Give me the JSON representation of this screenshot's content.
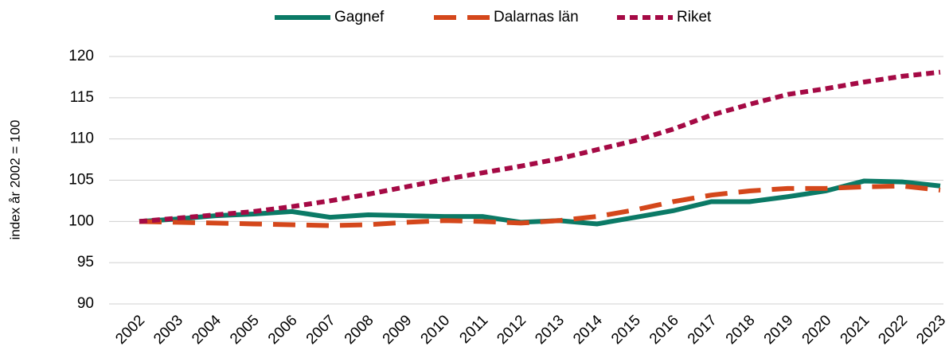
{
  "chart_data": {
    "type": "line",
    "y_label": "index år 2002 = 100",
    "categories": [
      "2002",
      "2003",
      "2004",
      "2005",
      "2006",
      "2007",
      "2008",
      "2009",
      "2010",
      "2011",
      "2012",
      "2013",
      "2014",
      "2015",
      "2016",
      "2017",
      "2018",
      "2019",
      "2020",
      "2021",
      "2022",
      "2023"
    ],
    "series": [
      {
        "name": "Gagnef",
        "color": "#0b7a66",
        "dash": "solid",
        "values": [
          100,
          100.3,
          100.7,
          100.9,
          101.2,
          100.5,
          100.8,
          100.7,
          100.6,
          100.6,
          99.9,
          100.1,
          99.7,
          100.5,
          101.3,
          102.4,
          102.4,
          103,
          103.7,
          104.9,
          104.8,
          104.3
        ]
      },
      {
        "name": "Dalarnas län",
        "color": "#d4471b",
        "dash": "long",
        "values": [
          100,
          99.9,
          99.8,
          99.7,
          99.6,
          99.5,
          99.6,
          99.9,
          100.1,
          100,
          99.8,
          100.1,
          100.6,
          101.4,
          102.4,
          103.2,
          103.7,
          104,
          104,
          104.2,
          104.3,
          103.8
        ]
      },
      {
        "name": "Riket",
        "color": "#a50a45",
        "dash": "short",
        "values": [
          100,
          100.4,
          100.8,
          101.2,
          101.8,
          102.5,
          103.3,
          104.2,
          105.1,
          105.9,
          106.7,
          107.6,
          108.7,
          109.8,
          111.2,
          112.9,
          114.2,
          115.4,
          116.1,
          116.9,
          117.6,
          118.1
        ]
      }
    ],
    "ylim": [
      90,
      120
    ],
    "yticks": [
      90,
      95,
      100,
      105,
      110,
      115,
      120
    ],
    "grid": true,
    "legend": "top"
  }
}
